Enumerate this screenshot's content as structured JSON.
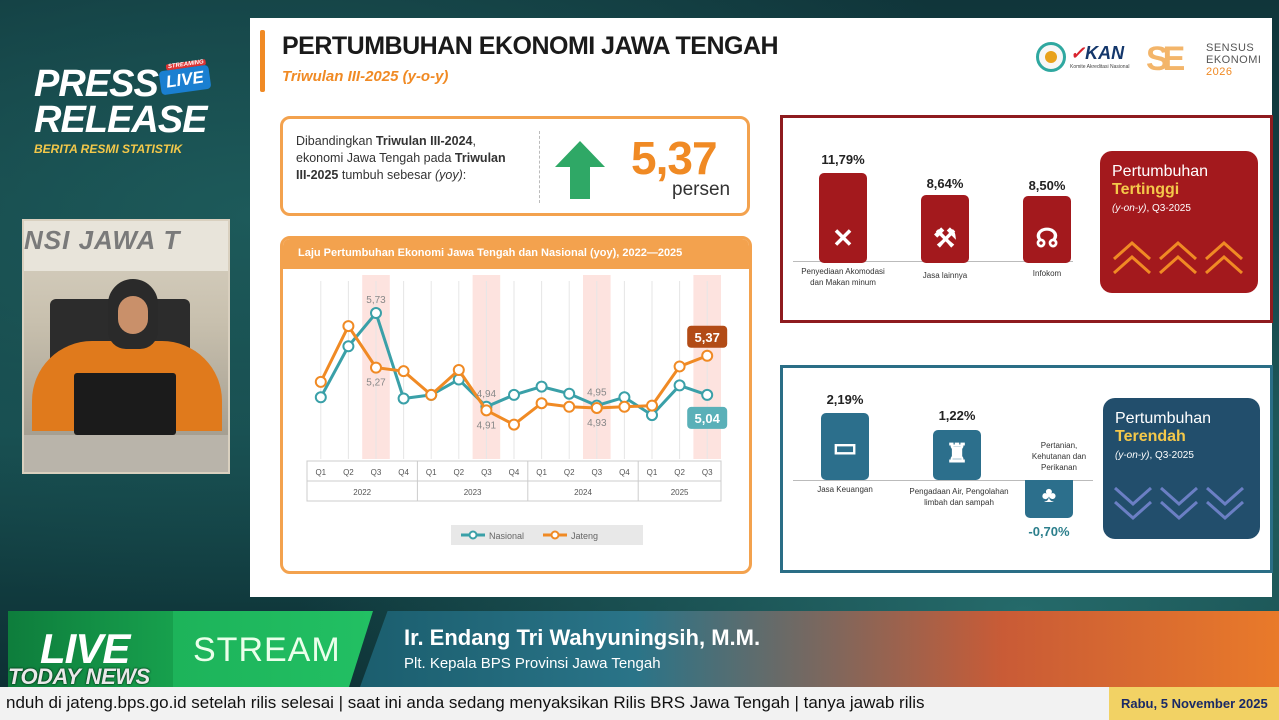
{
  "brand": {
    "line1": "PRESS",
    "line2": "RELEASE",
    "tagline": "BERITA RESMI STATISTIK",
    "badge": "LIVE",
    "badge_small": "STREAMING"
  },
  "video": {
    "wall_text": "NSI JAWA T"
  },
  "slide": {
    "title": "PERTUMBUHAN EKONOMI JAWA TENGAH",
    "subtitle": "Triwulan III-2025 (y-o-y)",
    "logos": {
      "kan": "KAN",
      "sensus_l1": "SENSUS",
      "sensus_l2": "EKONOMI",
      "sensus_l3": "2026"
    },
    "growth": {
      "text_a": "Dibandingkan ",
      "text_b": "Triwulan III-2024",
      "text_c": ", ekonomi Jawa Tengah pada ",
      "text_d": "Triwulan III-2025",
      "text_e": " tumbuh sebesar ",
      "text_f": "(yoy)",
      "text_g": ":",
      "value": "5,37",
      "unit": "persen"
    },
    "highest": {
      "sectors": [
        {
          "value": "11,79%",
          "label": "Penyediaan Akomodasi dan Makan minum",
          "icon": "fork-knife-icon"
        },
        {
          "value": "8,64%",
          "label": "Jasa lainnya",
          "icon": "tools-icon"
        },
        {
          "value": "8,50%",
          "label": "Infokom",
          "icon": "antenna-icon"
        }
      ],
      "summary_l1": "Pertumbuhan",
      "summary_l2": "Tertinggi",
      "summary_l3a": "(y-on-y)",
      "summary_l3b": ", Q3-2025"
    },
    "lowest": {
      "sectors": [
        {
          "value": "2,19%",
          "label": "Jasa Keuangan",
          "icon": "money-icon"
        },
        {
          "value": "1,22%",
          "label": "Pengadaan Air, Pengolahan limbah dan sampah",
          "icon": "hydrant-icon"
        },
        {
          "value": "-0,70%",
          "label": "Pertanian, Kehutanan dan Perikanan",
          "icon": "plant-icon"
        }
      ],
      "summary_l1": "Pertumbuhan",
      "summary_l2": "Terendah",
      "summary_l3a": "(y-on-y)",
      "summary_l3b": ", Q3-2025"
    }
  },
  "chart_data": {
    "type": "line",
    "title": "Laju Pertumbuhan Ekonomi Jawa Tengah dan Nasional (yoy), 2022—2025",
    "categories": [
      "Q1",
      "Q2",
      "Q3",
      "Q4",
      "Q1",
      "Q2",
      "Q3",
      "Q4",
      "Q1",
      "Q2",
      "Q3",
      "Q4",
      "Q1",
      "Q2",
      "Q3"
    ],
    "years": [
      "2022",
      "2023",
      "2024",
      "2025"
    ],
    "series": [
      {
        "name": "Nasional",
        "color": "#3aa0a8",
        "values": [
          5.02,
          5.45,
          5.73,
          5.01,
          5.04,
          5.17,
          4.94,
          5.04,
          5.11,
          5.05,
          4.95,
          5.02,
          4.87,
          5.12,
          5.04
        ]
      },
      {
        "name": "Jateng",
        "color": "#f08a24",
        "values": [
          5.15,
          5.62,
          5.27,
          5.24,
          5.04,
          5.25,
          4.91,
          4.79,
          4.97,
          4.94,
          4.93,
          4.94,
          4.95,
          5.28,
          5.37
        ]
      }
    ],
    "point_labels": [
      {
        "series": "Nasional",
        "index": 2,
        "text": "5,73"
      },
      {
        "series": "Jateng",
        "index": 2,
        "text": "5,27"
      },
      {
        "series": "Nasional",
        "index": 6,
        "text": "4,94"
      },
      {
        "series": "Jateng",
        "index": 6,
        "text": "4,91"
      },
      {
        "series": "Nasional",
        "index": 10,
        "text": "4,95"
      },
      {
        "series": "Jateng",
        "index": 10,
        "text": "4,93"
      }
    ],
    "end_labels": {
      "jateng": "5,37",
      "nasional": "5,04"
    },
    "highlight_quarter": "Q3",
    "ylim": [
      4.5,
      6.0
    ],
    "grid": true,
    "legend": "bottom"
  },
  "lower_third": {
    "live": "LIVE",
    "stream": "STREAM",
    "name": "Ir. Endang Tri Wahyuningsih, M.M.",
    "role": "Plt. Kepala BPS Provinsi Jawa Tengah",
    "watermark": "TODAY NEWS"
  },
  "ticker": {
    "text": "nduh di jateng.bps.go.id setelah rilis selesai   |   saat ini anda sedang menyaksikan Rilis BRS Jawa Tengah   |   tanya jawab rilis",
    "date": "Rabu, 5 November 2025"
  }
}
